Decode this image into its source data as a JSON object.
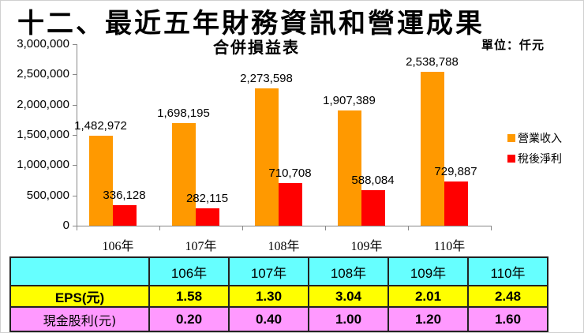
{
  "header": {
    "main_title": "十二、最近五年財務資訊和營運成果",
    "chart_title": "合併損益表",
    "unit_label": "單位：仟元"
  },
  "chart_data": {
    "type": "bar",
    "title": "合併損益表",
    "unit": "單位：仟元",
    "xlabel": "",
    "ylabel": "",
    "ylim": [
      0,
      3000000
    ],
    "yticks": [
      "3,000,000",
      "2,500,000",
      "2,000,000",
      "1,500,000",
      "1,000,000",
      "500,000",
      "0"
    ],
    "grid": false,
    "legend_position": "right",
    "categories": [
      "106年",
      "107年",
      "108年",
      "109年",
      "110年"
    ],
    "series": [
      {
        "name": "營業收入",
        "color": "#ff9900",
        "values": [
          1482972,
          1698195,
          2273598,
          1907389,
          2538788
        ],
        "labels": [
          "1,482,972",
          "1,698,195",
          "2,273,598",
          "1,907,389",
          "2,538,788"
        ]
      },
      {
        "name": "稅後淨利",
        "color": "#ff0000",
        "values": [
          336128,
          282115,
          710708,
          588084,
          729887
        ],
        "labels": [
          "336,128",
          "282,115",
          "710,708",
          "588,084",
          "729,887"
        ]
      }
    ]
  },
  "table": {
    "headers": [
      "",
      "106年",
      "107年",
      "108年",
      "109年",
      "110年"
    ],
    "rows": [
      {
        "label": "EPS(元)",
        "values": [
          "1.58",
          "1.30",
          "3.04",
          "2.01",
          "2.48"
        ],
        "color": "#ffff00"
      },
      {
        "label": "現金股利(元)",
        "values": [
          "0.20",
          "0.40",
          "1.00",
          "1.20",
          "1.60"
        ],
        "color": "#ff99ff"
      }
    ],
    "header_color": "#66ffff"
  }
}
